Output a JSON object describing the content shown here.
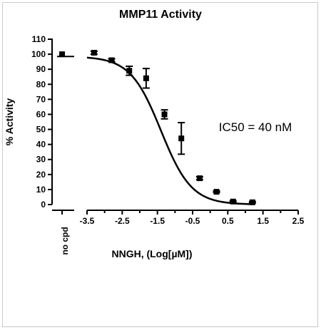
{
  "chart_data": {
    "type": "scatter",
    "title": "MMP11 Activity",
    "xlabel": "NNGH, (Log[µM])",
    "ylabel": "% Activity",
    "annotation": "IC50 = 40 nM",
    "no_cpd_label": "no cpd",
    "xlim": [
      -3.5,
      2.5
    ],
    "ylim": [
      0,
      110
    ],
    "x_ticks": [
      -3.5,
      -2.5,
      -1.5,
      -0.5,
      0.5,
      1.5,
      2.5
    ],
    "x_tick_labels": [
      "-3.5",
      "-2.5",
      "-1.5",
      "-0.5",
      "0.5",
      "1.5",
      "2.5"
    ],
    "y_ticks": [
      0,
      10,
      20,
      30,
      40,
      50,
      60,
      70,
      80,
      90,
      100,
      110
    ],
    "y_tick_labels": [
      "0",
      "10",
      "20",
      "30",
      "40",
      "50",
      "60",
      "70",
      "80",
      "90",
      "100",
      "110"
    ],
    "no_cpd_point": {
      "y": 100,
      "err": 1.5
    },
    "no_cpd_baseline": 98.5,
    "series": [
      {
        "points": [
          {
            "x": -3.3,
            "y": 101,
            "err": 1
          },
          {
            "x": -2.8,
            "y": 96,
            "err": 1
          },
          {
            "x": -2.3,
            "y": 89,
            "err": 3
          },
          {
            "x": -1.82,
            "y": 84,
            "err": 6.5
          },
          {
            "x": -1.3,
            "y": 60,
            "err": 3
          },
          {
            "x": -0.82,
            "y": 44,
            "err": 10.5
          },
          {
            "x": -0.3,
            "y": 17.5,
            "err": 1
          },
          {
            "x": 0.18,
            "y": 8.5,
            "err": 0.5
          },
          {
            "x": 0.65,
            "y": 2,
            "err": 0.5
          },
          {
            "x": 1.2,
            "y": 1.5,
            "err": 0.5
          }
        ],
        "fit": {
          "model": "sigmoidal",
          "top": 98.5,
          "bottom": 0,
          "logIC50": -1.4,
          "hill": -1,
          "x_range": [
            -3.5,
            1.2
          ]
        }
      }
    ],
    "grid": false,
    "legend": "none"
  }
}
